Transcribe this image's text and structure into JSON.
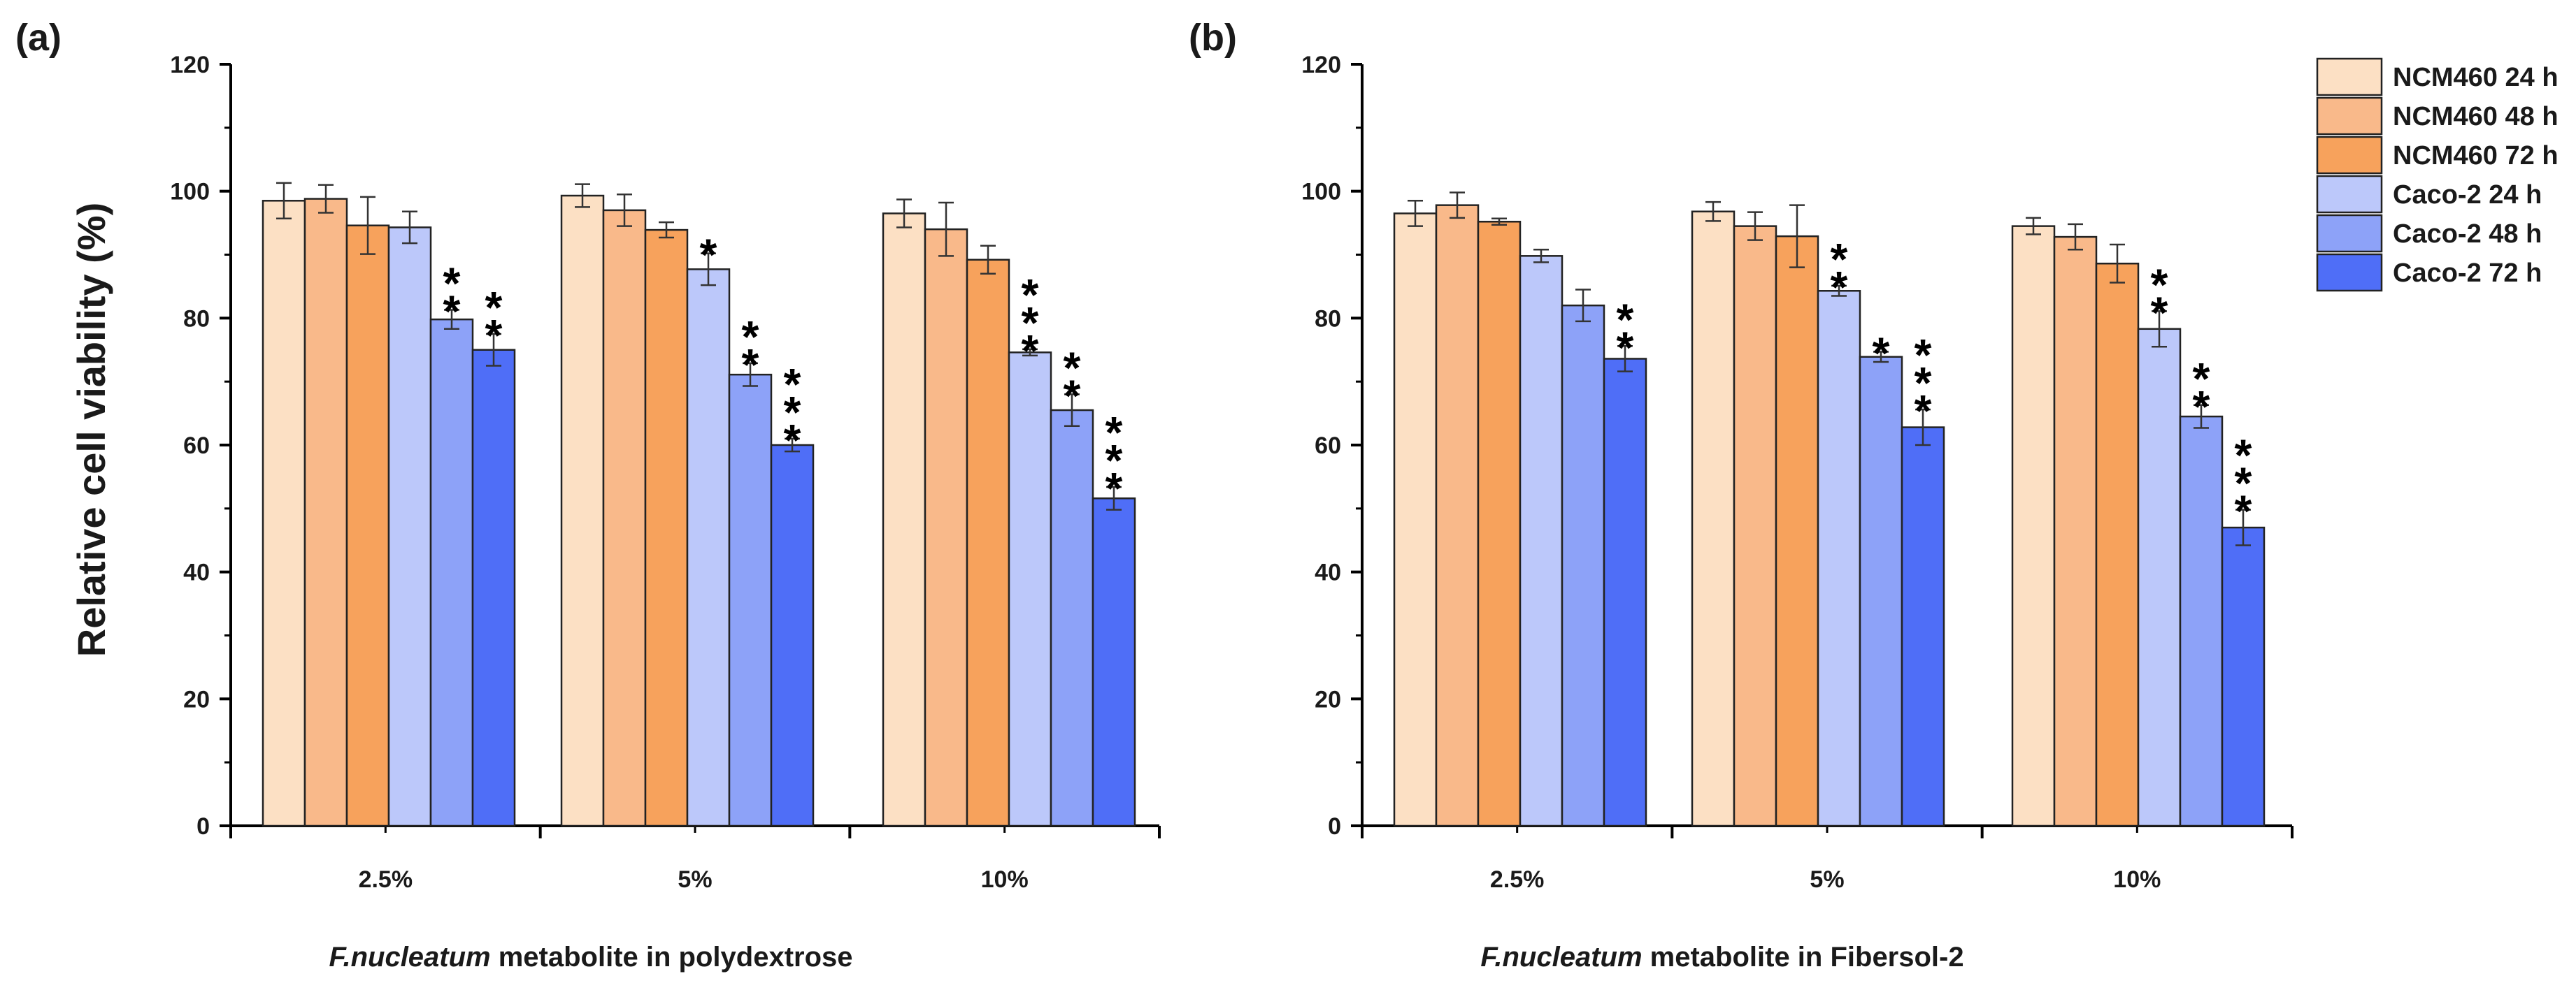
{
  "chart_data": [
    {
      "type": "bar",
      "panel": "(a)",
      "categories": [
        "2.5%",
        "5%",
        "10%"
      ],
      "series": [
        {
          "name": "NCM460 24 h",
          "color": "#FCE0C4",
          "values": [
            98.5,
            99.3,
            96.5
          ],
          "errors": [
            2.8,
            1.8,
            2.2
          ],
          "stars": [
            "",
            "",
            ""
          ]
        },
        {
          "name": "NCM460 48 h",
          "color": "#F9B98A",
          "values": [
            98.8,
            97.0,
            94.0
          ],
          "errors": [
            2.2,
            2.5,
            4.2
          ],
          "stars": [
            "",
            "",
            ""
          ]
        },
        {
          "name": "NCM460 72 h",
          "color": "#F7A25C",
          "values": [
            94.6,
            93.9,
            89.2
          ],
          "errors": [
            4.5,
            1.2,
            2.2
          ],
          "stars": [
            "",
            "",
            ""
          ]
        },
        {
          "name": "Caco-2 24 h",
          "color": "#BCC8FA",
          "values": [
            94.3,
            87.7,
            74.6
          ],
          "errors": [
            2.5,
            2.5,
            0.5
          ],
          "stars": [
            "",
            "*",
            "***"
          ]
        },
        {
          "name": "Caco-2 48 h",
          "color": "#8DA2F8",
          "values": [
            79.8,
            71.1,
            65.5
          ],
          "errors": [
            1.5,
            1.8,
            2.5
          ],
          "stars": [
            "**",
            "**",
            "**"
          ]
        },
        {
          "name": "Caco-2 72 h",
          "color": "#4F6EF7",
          "values": [
            75.0,
            60.0,
            51.6
          ],
          "errors": [
            2.5,
            1.0,
            1.8
          ],
          "stars": [
            "**",
            "***",
            "***"
          ]
        }
      ],
      "ylim": [
        0,
        120
      ],
      "yticks": [
        0,
        20,
        40,
        60,
        80,
        100,
        120
      ],
      "xlabel_italic": "F.nucleatum",
      "xlabel_rest": " metabolite in polydextrose",
      "ylabel": "Relative cell viability (%)"
    },
    {
      "type": "bar",
      "panel": "(b)",
      "categories": [
        "2.5%",
        "5%",
        "10%"
      ],
      "series": [
        {
          "name": "NCM460 24 h",
          "color": "#FCE0C4",
          "values": [
            96.5,
            96.8,
            94.5
          ],
          "errors": [
            2.0,
            1.5,
            1.3
          ],
          "stars": [
            "",
            "",
            ""
          ]
        },
        {
          "name": "NCM460 48 h",
          "color": "#F9B98A",
          "values": [
            97.8,
            94.5,
            92.8
          ],
          "errors": [
            2.0,
            2.2,
            2.0
          ],
          "stars": [
            "",
            "",
            ""
          ]
        },
        {
          "name": "NCM460 72 h",
          "color": "#F7A25C",
          "values": [
            95.2,
            92.9,
            88.6
          ],
          "errors": [
            0.5,
            4.9,
            3.0
          ],
          "stars": [
            "",
            "",
            ""
          ]
        },
        {
          "name": "Caco-2 24 h",
          "color": "#BCC8FA",
          "values": [
            89.8,
            84.3,
            78.3
          ],
          "errors": [
            1.0,
            0.8,
            2.8
          ],
          "stars": [
            "",
            "**",
            "**"
          ]
        },
        {
          "name": "Caco-2 48 h",
          "color": "#8DA2F8",
          "values": [
            82.0,
            73.9,
            64.5
          ],
          "errors": [
            2.5,
            0.8,
            1.8
          ],
          "stars": [
            "",
            "*",
            "**"
          ]
        },
        {
          "name": "Caco-2 72 h",
          "color": "#4F6EF7",
          "values": [
            73.6,
            62.8,
            47.0
          ],
          "errors": [
            2.0,
            2.8,
            2.8
          ],
          "stars": [
            "**",
            "***",
            "***"
          ]
        }
      ],
      "ylim": [
        0,
        120
      ],
      "yticks": [
        0,
        20,
        40,
        60,
        80,
        100,
        120
      ],
      "xlabel_italic": "F.nucleatum",
      "xlabel_rest": " metabolite in Fibersol-2"
    }
  ],
  "legend": {
    "items": [
      {
        "label": "NCM460 24 h",
        "color": "#FCE0C4"
      },
      {
        "label": "NCM460 48 h",
        "color": "#F9B98A"
      },
      {
        "label": "NCM460 72 h",
        "color": "#F7A25C"
      },
      {
        "label": "Caco-2 24 h",
        "color": "#BCC8FA"
      },
      {
        "label": "Caco-2 48 h",
        "color": "#8DA2F8"
      },
      {
        "label": "Caco-2 72 h",
        "color": "#4F6EF7"
      }
    ]
  }
}
